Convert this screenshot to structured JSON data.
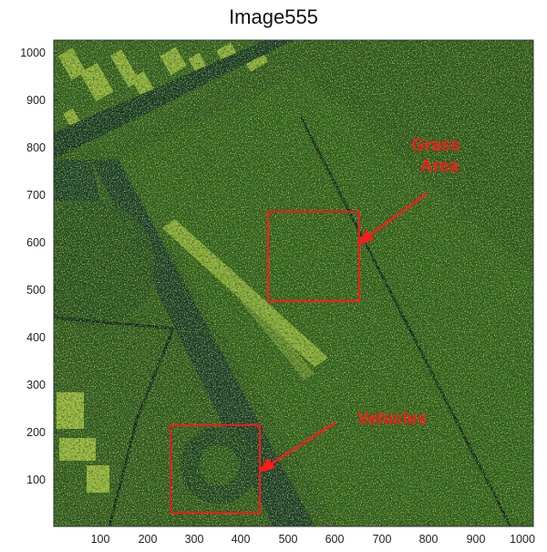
{
  "figure": {
    "title": "Image555",
    "x_ticks": [
      "100",
      "200",
      "300",
      "400",
      "500",
      "600",
      "700",
      "800",
      "900",
      "1000"
    ],
    "y_ticks": [
      "1000",
      "900",
      "800",
      "700",
      "600",
      "500",
      "400",
      "300",
      "200",
      "100"
    ],
    "x_range": [
      0,
      1024
    ],
    "y_range": [
      0,
      1024
    ]
  },
  "annotations": {
    "grass_line1": "Grass",
    "grass_line2": "Area",
    "vehicles": "Vehicles"
  },
  "colors": {
    "annotation": "#ff1a1a",
    "image_dark": "#0f2a14",
    "image_mid": "#2f5a16",
    "image_bright": "#b8c93a"
  }
}
